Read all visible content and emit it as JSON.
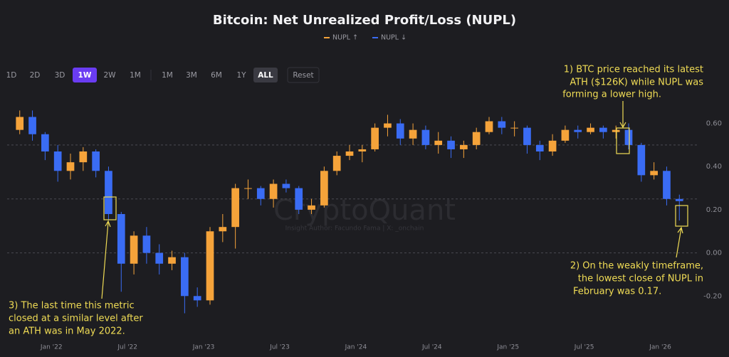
{
  "chart_data": {
    "type": "candlestick",
    "title": "Bitcoin: Net Unrealized Profit/Loss (NUPL)",
    "legend": [
      {
        "name": "NUPL ↑",
        "color": "#f5a33a"
      },
      {
        "name": "NUPL ↓",
        "color": "#3a6cf4"
      }
    ],
    "toolbar": [
      {
        "label": "1D"
      },
      {
        "label": "2D"
      },
      {
        "label": "3D"
      },
      {
        "label": "1W",
        "selected": true
      },
      {
        "label": "2W"
      },
      {
        "label": "1M"
      },
      {
        "label": "1M"
      },
      {
        "label": "3M"
      },
      {
        "label": "6M"
      },
      {
        "label": "1Y"
      },
      {
        "label": "ALL",
        "selected": true
      },
      {
        "label": "Reset"
      }
    ],
    "watermark": "CryptoQuant",
    "author": "Insight Author: Facundo Fama | X: _onchain",
    "annotations": [
      [
        "1) BTC price reached its latest",
        "ATH ($126K) while NUPL was",
        "forming a lower high."
      ],
      [
        "2) On the weakly timeframe,",
        "the lowest close of NUPL in",
        "February was 0.17."
      ],
      [
        "3) The last time this metric",
        "closed at a similar level after",
        "an ATH was in May 2022."
      ]
    ],
    "x": [
      "2021-10",
      "2021-11",
      "2021-12",
      "2022-01",
      "2022-02",
      "2022-03",
      "2022-04",
      "2022-05",
      "2022-06",
      "2022-07",
      "2022-08",
      "2022-09",
      "2022-10",
      "2022-11",
      "2022-12",
      "2023-01",
      "2023-02",
      "2023-03",
      "2023-04",
      "2023-05",
      "2023-06",
      "2023-07",
      "2023-08",
      "2023-09",
      "2023-10",
      "2023-11",
      "2023-12",
      "2024-01",
      "2024-02",
      "2024-03",
      "2024-04",
      "2024-05",
      "2024-06",
      "2024-07",
      "2024-08",
      "2024-09",
      "2024-10",
      "2024-11",
      "2024-12",
      "2025-01",
      "2025-02",
      "2025-03",
      "2025-04",
      "2025-05",
      "2025-06",
      "2025-07",
      "2025-08",
      "2025-09",
      "2025-10",
      "2025-11",
      "2025-12",
      "2026-01",
      "2026-02"
    ],
    "open": [
      0.57,
      0.63,
      0.55,
      0.47,
      0.38,
      0.42,
      0.47,
      0.38,
      0.18,
      -0.05,
      0.08,
      0.0,
      -0.05,
      -0.02,
      -0.2,
      -0.22,
      0.1,
      0.12,
      0.3,
      0.3,
      0.25,
      0.32,
      0.3,
      0.2,
      0.22,
      0.38,
      0.45,
      0.47,
      0.48,
      0.58,
      0.6,
      0.53,
      0.57,
      0.5,
      0.52,
      0.48,
      0.5,
      0.56,
      0.61,
      0.58,
      0.58,
      0.5,
      0.47,
      0.52,
      0.57,
      0.56,
      0.58,
      0.56,
      0.57,
      0.5,
      0.36,
      0.38,
      0.25
    ],
    "high": [
      0.66,
      0.66,
      0.56,
      0.5,
      0.46,
      0.49,
      0.48,
      0.4,
      0.19,
      0.1,
      0.12,
      0.04,
      0.01,
      0.0,
      -0.16,
      0.12,
      0.18,
      0.32,
      0.34,
      0.31,
      0.34,
      0.34,
      0.31,
      0.25,
      0.4,
      0.47,
      0.5,
      0.5,
      0.6,
      0.64,
      0.62,
      0.6,
      0.59,
      0.56,
      0.54,
      0.52,
      0.58,
      0.63,
      0.63,
      0.61,
      0.59,
      0.52,
      0.55,
      0.59,
      0.59,
      0.6,
      0.59,
      0.59,
      0.6,
      0.51,
      0.42,
      0.4,
      0.27
    ],
    "low": [
      0.55,
      0.52,
      0.43,
      0.33,
      0.34,
      0.38,
      0.35,
      0.15,
      -0.18,
      -0.1,
      -0.05,
      -0.1,
      -0.08,
      -0.28,
      -0.25,
      -0.24,
      0.05,
      0.02,
      0.25,
      0.22,
      0.21,
      0.28,
      0.18,
      0.18,
      0.21,
      0.36,
      0.43,
      0.42,
      0.47,
      0.54,
      0.5,
      0.5,
      0.48,
      0.46,
      0.44,
      0.44,
      0.48,
      0.55,
      0.55,
      0.54,
      0.46,
      0.43,
      0.45,
      0.51,
      0.53,
      0.55,
      0.53,
      0.53,
      0.48,
      0.33,
      0.34,
      0.22,
      0.15
    ],
    "close": [
      0.63,
      0.55,
      0.47,
      0.38,
      0.42,
      0.47,
      0.38,
      0.18,
      -0.05,
      0.08,
      0.0,
      -0.05,
      -0.02,
      -0.2,
      -0.22,
      0.1,
      0.12,
      0.3,
      0.3,
      0.25,
      0.32,
      0.3,
      0.2,
      0.22,
      0.38,
      0.45,
      0.47,
      0.48,
      0.58,
      0.6,
      0.53,
      0.57,
      0.5,
      0.52,
      0.48,
      0.5,
      0.56,
      0.61,
      0.58,
      0.58,
      0.5,
      0.47,
      0.52,
      0.57,
      0.56,
      0.58,
      0.56,
      0.57,
      0.5,
      0.36,
      0.38,
      0.25,
      0.24
    ],
    "xlim": [
      "2021-09",
      "2026-04"
    ],
    "xticks": [
      {
        "value": "2022-01",
        "label": "Jan '22"
      },
      {
        "value": "2022-07",
        "label": "Jul '22"
      },
      {
        "value": "2023-01",
        "label": "Jan '23"
      },
      {
        "value": "2023-07",
        "label": "Jul '23"
      },
      {
        "value": "2024-01",
        "label": "Jan '24"
      },
      {
        "value": "2024-07",
        "label": "Jul '24"
      },
      {
        "value": "2025-01",
        "label": "Jan '25"
      },
      {
        "value": "2025-07",
        "label": "Jul '25"
      },
      {
        "value": "2026-01",
        "label": "Jan '26"
      }
    ],
    "ylim": [
      -0.41,
      0.76
    ],
    "yticks": [
      {
        "value": -0.2,
        "label": "-0.20"
      },
      {
        "value": 0,
        "label": "0.00"
      },
      {
        "value": 0.2,
        "label": "0.20"
      },
      {
        "value": 0.4,
        "label": "0.40"
      },
      {
        "value": 0.6,
        "label": "0.60"
      }
    ],
    "hlines": [
      0.5,
      0.25,
      0
    ]
  }
}
